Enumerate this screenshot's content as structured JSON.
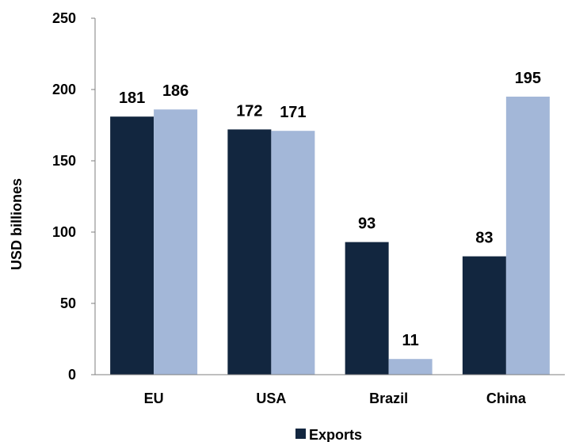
{
  "chart_data": {
    "type": "bar",
    "categories": [
      "EU",
      "USA",
      "Brazil",
      "China"
    ],
    "series": [
      {
        "name": "Exports",
        "values": [
          181,
          172,
          93,
          83
        ],
        "color": "#12263f"
      },
      {
        "values": [
          186,
          171,
          11,
          195
        ],
        "color": "#a3b7d8"
      }
    ],
    "ylabel": "USD billiones",
    "ylim": [
      0,
      250
    ],
    "yticks": [
      0,
      50,
      100,
      150,
      200,
      250
    ],
    "data_labels": [
      [
        "181",
        "172",
        "93",
        "83"
      ],
      [
        "186",
        "171",
        "11",
        "195"
      ]
    ],
    "grid": false,
    "legend": {
      "position": "bottom",
      "entries": [
        "Exports"
      ]
    }
  }
}
